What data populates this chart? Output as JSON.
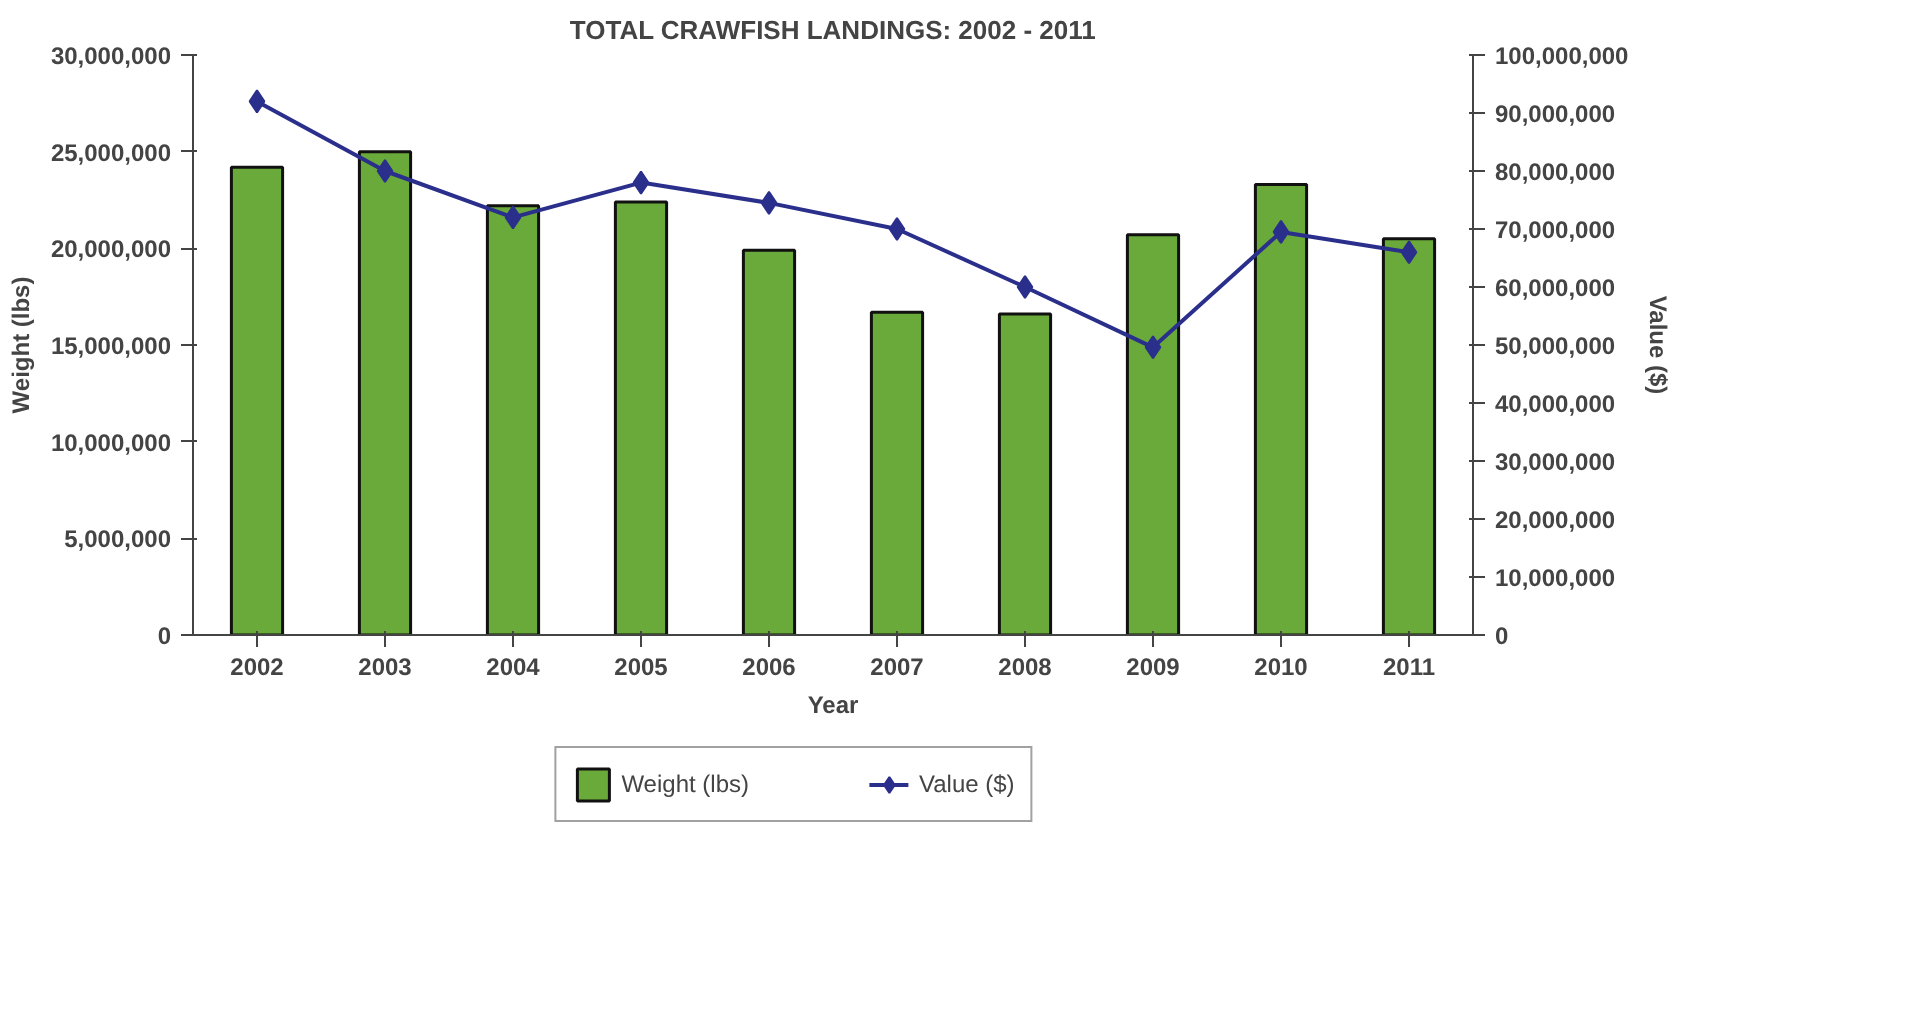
{
  "chart_data": {
    "type": "bar",
    "title": "TOTAL CRAWFISH LANDINGS: 2002 - 2011",
    "xlabel": "Year",
    "ylabel": "Weight (lbs)",
    "y2label": "Value ($)",
    "categories": [
      "2002",
      "2003",
      "2004",
      "2005",
      "2006",
      "2007",
      "2008",
      "2009",
      "2010",
      "2011"
    ],
    "series": [
      {
        "name": "Weight (lbs)",
        "color": "#6aaa3a",
        "values": [
          24200000,
          25000000,
          22200000,
          22400000,
          19900000,
          16700000,
          16600000,
          20700000,
          23300000,
          20500000
        ]
      },
      {
        "name": "Value ($)",
        "type": "line",
        "axis": "y2",
        "color": "#2b2f8c",
        "marker": "diamond",
        "values": [
          92000000,
          80000000,
          72000000,
          78000000,
          74500000,
          70000000,
          60000000,
          49600000,
          69500000,
          66000000
        ]
      }
    ],
    "ylim": [
      0,
      30000000
    ],
    "yticks": [
      {
        "value": 0,
        "label": "0"
      },
      {
        "value": 5000000,
        "label": "5,000,000"
      },
      {
        "value": 10000000,
        "label": "10,000,000"
      },
      {
        "value": 15000000,
        "label": "15,000,000"
      },
      {
        "value": 20000000,
        "label": "20,000,000"
      },
      {
        "value": 25000000,
        "label": "25,000,000"
      },
      {
        "value": 30000000,
        "label": "30,000,000"
      }
    ],
    "y2lim": [
      0,
      100000000
    ],
    "y2ticks": [
      {
        "value": 0,
        "label": "0"
      },
      {
        "value": 10000000,
        "label": "10,000,000"
      },
      {
        "value": 20000000,
        "label": "20,000,000"
      },
      {
        "value": 30000000,
        "label": "30,000,000"
      },
      {
        "value": 40000000,
        "label": "40,000,000"
      },
      {
        "value": 50000000,
        "label": "50,000,000"
      },
      {
        "value": 60000000,
        "label": "60,000,000"
      },
      {
        "value": 70000000,
        "label": "70,000,000"
      },
      {
        "value": 80000000,
        "label": "80,000,000"
      },
      {
        "value": 90000000,
        "label": "90,000,000"
      },
      {
        "value": 100000000,
        "label": "100,000,000"
      }
    ],
    "grid": false,
    "legend": "bottom"
  }
}
